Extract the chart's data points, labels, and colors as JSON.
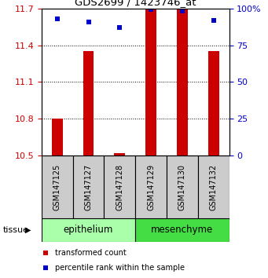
{
  "title": "GDS2699 / 1423746_at",
  "samples": [
    "GSM147125",
    "GSM147127",
    "GSM147128",
    "GSM147129",
    "GSM147130",
    "GSM147132"
  ],
  "red_values": [
    10.8,
    11.35,
    10.52,
    11.7,
    11.7,
    11.35
  ],
  "blue_values": [
    93,
    91,
    87,
    99,
    98,
    92
  ],
  "ymin": 10.5,
  "ymax": 11.7,
  "yticks": [
    10.5,
    10.8,
    11.1,
    11.4,
    11.7
  ],
  "right_yticks": [
    0,
    25,
    50,
    75,
    100
  ],
  "epi_color": "#AAFFAA",
  "mes_color": "#44DD44",
  "bar_color": "#CC0000",
  "dot_color": "#0000CC",
  "bar_width": 0.35,
  "ylabel_left_color": "#CC0000",
  "ylabel_right_color": "#0000CC",
  "sample_box_color": "#CCCCCC",
  "legend_red_label": "transformed count",
  "legend_blue_label": "percentile rank within the sample"
}
